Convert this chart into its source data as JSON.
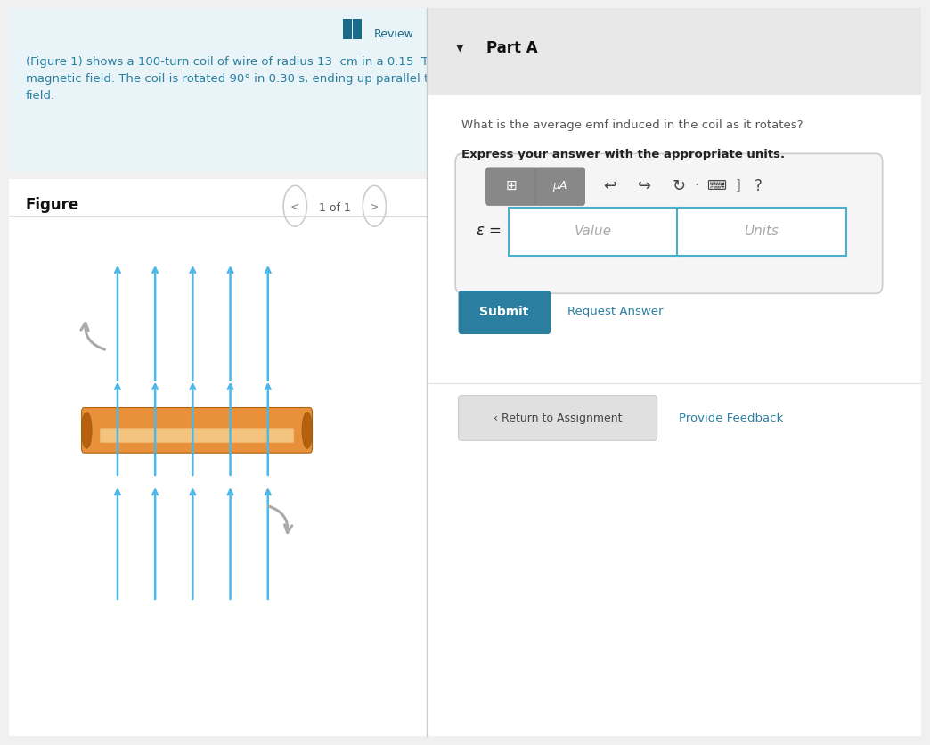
{
  "bg_left": "#eaf4f8",
  "bg_right": "#ffffff",
  "bg_part_a_header": "#e8e8e8",
  "review_color": "#1a6b8a",
  "review_text": "Review",
  "left_text_color": "#2a7fa0",
  "part_a_title": "Part A",
  "question_text": "What is the average emf induced in the coil as it rotates?",
  "bold_instruction": "Express your answer with the appropriate units.",
  "value_placeholder": "Value",
  "units_placeholder": "Units",
  "submit_bg": "#2a7fa0",
  "submit_text": "Submit",
  "submit_text_color": "#ffffff",
  "request_answer_text": "Request Answer",
  "return_text": "‹ Return to Assignment",
  "feedback_text": "Provide Feedback",
  "figure_title": "Figure",
  "nav_text": "1 of 1",
  "arrow_color": "#4db8e8",
  "coil_color_main": "#e8913a",
  "coil_color_light": "#f5c882",
  "rotation_arrow_color": "#aaaaaa",
  "left_panel_main_text": "(Figure 1) shows a 100-turn coil of wire of radius 13  cm in a 0.15  T\nmagnetic field. The coil is rotated 90° in 0.30 s, ending up parallel to the\nfield."
}
